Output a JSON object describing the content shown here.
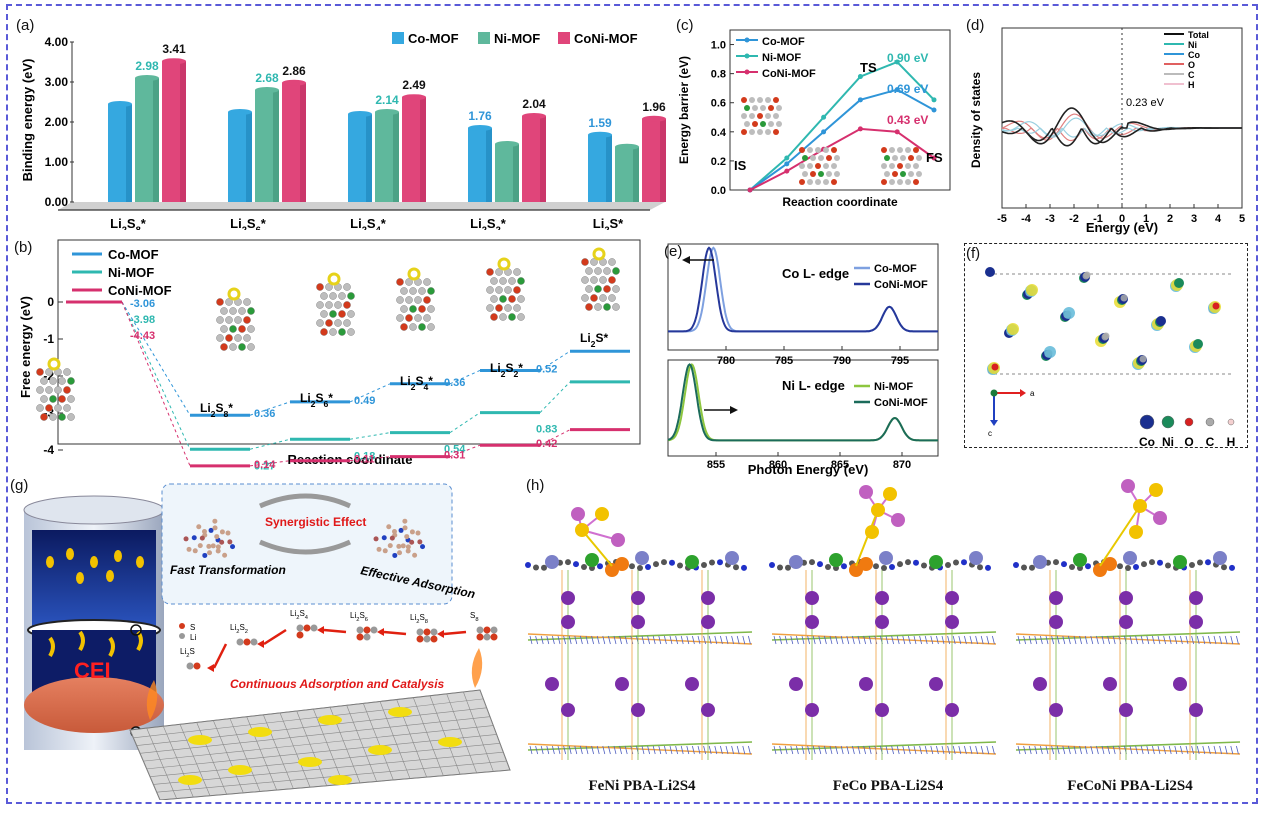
{
  "panels": {
    "a": {
      "label": "(a)",
      "ylabel": "Binding energy (eV)",
      "legend": [
        "Co-MOF",
        "Ni-MOF",
        "CoNi-MOF"
      ],
      "yticks": [
        "0.00",
        "1.00",
        "2.00",
        "3.00",
        "4.00"
      ],
      "categories": [
        "Li2S8*",
        "Li2S6*",
        "Li2S4*",
        "Li2S2*",
        "Li2S*"
      ],
      "value_labels_ni": [
        "2.98",
        "2.68",
        "2.14",
        "",
        ""
      ],
      "value_labels_co": [
        "",
        "",
        "",
        "1.76",
        "1.59"
      ],
      "value_labels_coni": [
        "3.41",
        "2.86",
        "2.49",
        "2.04",
        "1.96"
      ]
    },
    "b": {
      "label": "(b)",
      "ylabel": "Free energy (eV)",
      "xlabel": "Reaction coordinate",
      "legend": [
        "Co-MOF",
        "Ni-MOF",
        "CoNi-MOF"
      ],
      "yticks": [
        "0",
        "-1",
        "-2",
        "-3",
        "-4"
      ],
      "first_step": [
        "-3.06",
        "-3.98",
        "-4.43"
      ],
      "species": [
        "Li2S8*",
        "Li2S6*",
        "Li2S4*",
        "Li2S2*",
        "Li2S*"
      ],
      "step_co": [
        "0.36",
        "0.49",
        "0.36",
        "0.52"
      ],
      "step_ni": [
        "0.27",
        "0.18",
        "0.54",
        "0.83"
      ],
      "step_coni": [
        "0.14",
        "0.11",
        "0.31",
        "0.42"
      ]
    },
    "c": {
      "label": "(c)",
      "ylabel": "Energy barrier (eV)",
      "xlabel": "Reaction coordinate",
      "legend": [
        "Co-MOF",
        "Ni-MOF",
        "CoNi-MOF"
      ],
      "yticks": [
        "0.0",
        "0.2",
        "0.4",
        "0.6",
        "0.8",
        "1.0"
      ],
      "ts_label": "TS",
      "is_label": "IS",
      "fs_label": "FS",
      "barriers": [
        "0.90 eV",
        "0.69 eV",
        "0.43 eV"
      ]
    },
    "d": {
      "label": "(d)",
      "ylabel": "Density of states",
      "xlabel": "Energy (eV)",
      "xticks": [
        "-5",
        "-4",
        "-3",
        "-2",
        "-1",
        "0",
        "1",
        "2",
        "3",
        "4",
        "5"
      ],
      "legend": [
        "Total",
        "Ni",
        "Co",
        "O",
        "C",
        "H"
      ],
      "gap": "0.23 eV"
    },
    "e": {
      "label": "(e)",
      "xlabel": "Photon Energy (eV)",
      "top_title": "Co L- edge",
      "top_legend": [
        "Co-MOF",
        "CoNi-MOF"
      ],
      "top_xticks": [
        "780",
        "785",
        "790",
        "795"
      ],
      "bottom_title": "Ni L- edge",
      "bottom_legend": [
        "Ni-MOF",
        "CoNi-MOF"
      ],
      "bottom_xticks": [
        "855",
        "860",
        "865",
        "870"
      ]
    },
    "f": {
      "label": "(f)",
      "atoms": [
        "Co",
        "Ni",
        "O",
        "C",
        "H"
      ],
      "axis_a": "a",
      "axis_c": "c"
    },
    "g": {
      "label": "(g)",
      "cei": "CEI",
      "synergy": "Synergistic Effect",
      "fast": "Fast Transformation",
      "adsorption": "Effective Adsorption",
      "continuous": "Continuous Adsorption and Catalysis",
      "legend_s": "S",
      "legend_li": "Li",
      "species": [
        "Li2S",
        "Li2S2",
        "Li2S4",
        "Li2S6",
        "Li2S8",
        "S8"
      ]
    },
    "h": {
      "label": "(h)",
      "captions": [
        "FeNi PBA-Li2S4",
        "FeCo PBA-Li2S4",
        "FeCoNi PBA-Li2S4"
      ]
    }
  },
  "colors": {
    "co": "#2f95d8",
    "ni": "#2fb8b0",
    "coni": "#d6306e",
    "bar_co": "#35a8e0",
    "bar_ni": "#5fb89c",
    "bar_coni": "#e0457a",
    "frame": "#5a5ad8"
  }
}
